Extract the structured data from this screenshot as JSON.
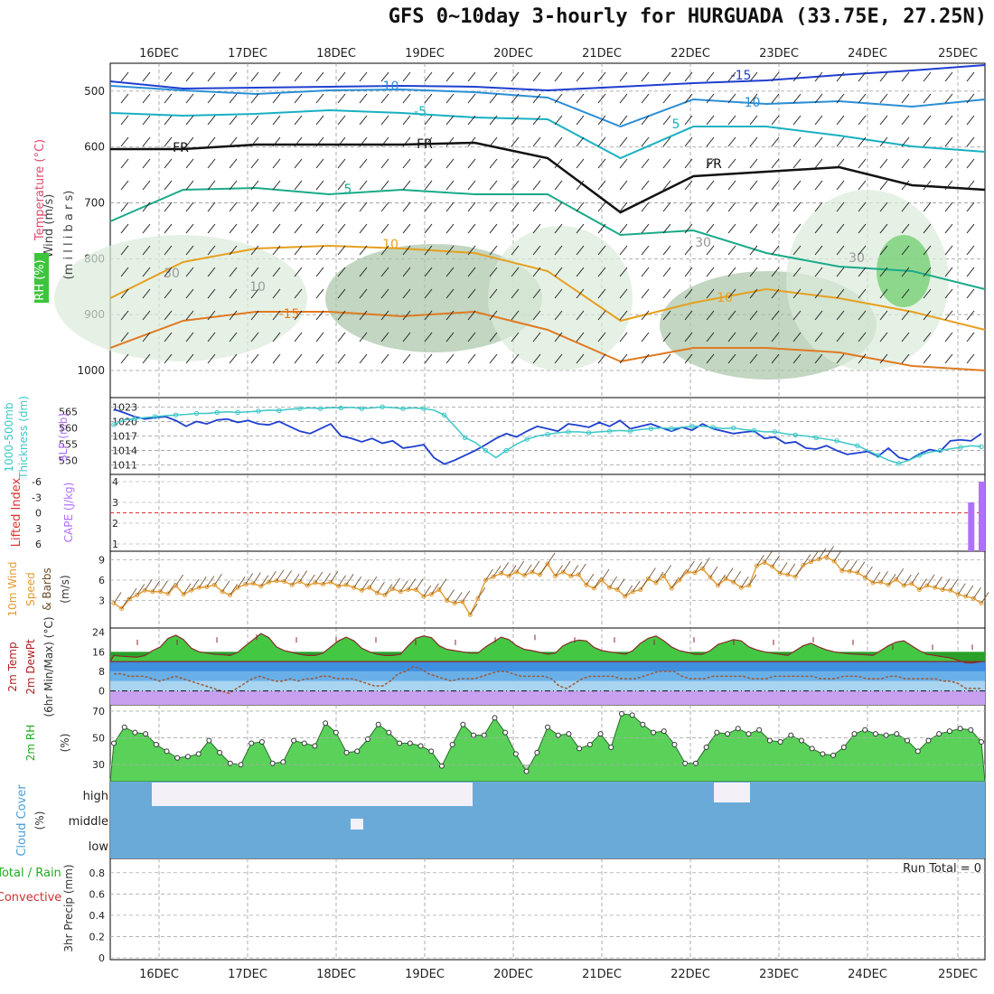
{
  "title": "GFS 0~10day 3-hourly for HURGUADA (33.75E, 27.25N)",
  "run_total_text": "Run Total = 0",
  "colors": {
    "slp": "#1f3fcf",
    "thickness": "#3cc7c7",
    "wind_speed": "#e39a30",
    "barb": "#6b4a2a",
    "cape": "#b070ff",
    "lifted": "#e03030",
    "temp_fill": "#44c844",
    "dew": "#9a5a3a",
    "rh_fill": "#5ad25a",
    "cloud": "#6aaad8",
    "clear": "#f4f0f8"
  },
  "chart_data": {
    "type": "line",
    "days": [
      "16DEC",
      "17DEC",
      "18DEC",
      "19DEC",
      "20DEC",
      "21DEC",
      "22DEC",
      "23DEC",
      "24DEC",
      "25DEC"
    ],
    "panels": [
      {
        "id": "profile",
        "ylabels": [
          "Wind (m/s)",
          "Temperature (°C)",
          "RH (%)",
          "(m i l l i b a r s)"
        ],
        "yticks": [
          500,
          600,
          700,
          800,
          900,
          1000
        ],
        "ylim": [
          450,
          1000
        ],
        "contour_labels": [
          "-15",
          "-10",
          "-10",
          "-5",
          "5",
          "5",
          "FR",
          "FR",
          "FR",
          "10",
          "10",
          "-15",
          "10",
          "30",
          "30",
          "30"
        ]
      },
      {
        "id": "slp_thickness",
        "ylabels": [
          "1000-500mb",
          "Thickness (dm)",
          "SLP (mb)"
        ],
        "yticks_left": [
          550,
          555,
          560,
          565
        ],
        "yticks_right": [
          1011,
          1014,
          1017,
          1020,
          1023
        ],
        "slp": [
          1022.5,
          1021.8,
          1021.0,
          1020.5,
          1020.8,
          1021.0,
          1020.2,
          1019.0,
          1020.0,
          1019.5,
          1020.3,
          1020.5,
          1019.8,
          1020.2,
          1019.5,
          1019.3,
          1020.0,
          1019.0,
          1018.0,
          1017.5,
          1018.5,
          1019.5,
          1017.0,
          1016.5,
          1015.8,
          1016.5,
          1015.5,
          1016.0,
          1014.5,
          1014.8,
          1015.2,
          1012.5,
          1011.2,
          1012.0,
          1013.0,
          1014.0,
          1015.2,
          1016.5,
          1017.5,
          1016.8,
          1018.0,
          1019.0,
          1018.5,
          1018.0,
          1019.5,
          1019.2,
          1018.8,
          1019.8,
          1019.0,
          1020.2,
          1018.5,
          1019.0,
          1019.5,
          1018.7,
          1018.0,
          1018.8,
          1018.2,
          1019.5,
          1018.5,
          1018.0,
          1017.5,
          1017.8,
          1018.0,
          1016.5,
          1016.8,
          1015.5,
          1015.8,
          1014.5,
          1014.3,
          1015.0,
          1014.0,
          1013.2,
          1013.5,
          1013.8,
          1012.8,
          1014.5,
          1012.6,
          1012.0,
          1013.3,
          1014.2,
          1013.8,
          1016.0,
          1016.2,
          1016.0,
          1017.5
        ],
        "thickness": [
          561.0,
          562.5,
          562.8,
          563.2,
          563.5,
          563.8,
          564.0,
          564.2,
          564.5,
          564.5,
          564.8,
          565.0,
          564.8,
          565.0,
          565.2,
          565.5,
          565.4,
          565.8,
          566.0,
          566.2,
          566.0,
          566.3,
          566.2,
          566.4,
          566.0,
          566.2,
          566.5,
          566.3,
          566.0,
          566.2,
          566.0,
          565.5,
          564.0,
          560.5,
          557.0,
          555.5,
          553.0,
          550.8,
          553.0,
          555.0,
          556.5,
          557.5,
          558.0,
          558.5,
          558.8,
          558.8,
          558.5,
          558.8,
          559.0,
          559.2,
          559.0,
          559.5,
          559.8,
          560.0,
          559.8,
          560.2,
          560.5,
          560.5,
          560.2,
          559.8,
          560.0,
          559.5,
          559.2,
          558.8,
          558.8,
          558.2,
          557.8,
          557.5,
          557.0,
          556.5,
          556.0,
          555.2,
          554.5,
          553.0,
          551.5,
          550.0,
          549.0,
          550.0,
          551.5,
          552.5,
          553.0,
          553.5,
          554.0,
          554.5,
          554.2
        ]
      },
      {
        "id": "cape_li",
        "ylabels": [
          "Lifted Index",
          "CAPE (J/kg)"
        ],
        "yticks_left": [
          "-6",
          "-3",
          "0",
          "3",
          "6"
        ],
        "yticks_right": [
          "4",
          "3",
          "2",
          "1"
        ],
        "cape_bars": [
          {
            "x": 81,
            "value": 3.0
          },
          {
            "x": 82,
            "value": 4.0
          }
        ]
      },
      {
        "id": "wind10m",
        "ylabels": [
          "10m Wind",
          "Speed",
          "& Barbs",
          "(m/s)"
        ],
        "yticks": [
          3,
          6,
          9
        ],
        "speed": [
          2.6,
          1.8,
          3.2,
          3.8,
          4.5,
          4.3,
          4.3,
          4.0,
          5.2,
          3.9,
          4.5,
          4.9,
          5.0,
          5.3,
          4.3,
          3.8,
          4.9,
          5.4,
          5.5,
          5.1,
          5.7,
          5.9,
          5.8,
          5.3,
          5.8,
          5.2,
          5.6,
          5.4,
          5.7,
          5.1,
          5.3,
          4.9,
          4.5,
          4.9,
          4.1,
          3.8,
          4.7,
          4.3,
          4.6,
          4.6,
          3.6,
          3.9,
          4.6,
          3.0,
          2.6,
          2.8,
          0.9,
          3.3,
          6.0,
          6.5,
          7.0,
          6.6,
          7.2,
          6.7,
          7.2,
          6.8,
          8.4,
          6.6,
          7.2,
          6.6,
          6.8,
          5.3,
          4.8,
          6.0,
          4.9,
          4.6,
          3.6,
          4.3,
          4.6,
          6.2,
          5.6,
          6.6,
          4.8,
          6.0,
          7.2,
          7.1,
          7.7,
          6.4,
          5.2,
          6.2,
          5.7,
          4.9,
          5.2,
          8.1,
          8.6,
          8.0,
          7.0,
          6.8,
          6.5,
          8.2,
          8.7,
          9.1,
          9.4,
          8.8,
          7.4,
          7.3,
          7.1,
          6.4,
          5.6,
          5.7,
          5.3,
          6.1,
          5.2,
          5.5,
          4.6,
          5.2,
          4.9,
          4.6,
          4.5,
          3.9,
          3.6,
          3.3,
          2.6
        ]
      },
      {
        "id": "temp2m",
        "ylabels": [
          "2m Temp",
          "2m DewPt",
          "(6hr Min/Max) (°C)"
        ],
        "yticks": [
          0,
          8,
          16,
          24
        ],
        "temp": [
          14.5,
          14.2,
          14.0,
          13.8,
          14.5,
          16.5,
          18.0,
          21.5,
          22.8,
          21.0,
          17.5,
          16.0,
          15.5,
          15.0,
          14.8,
          14.5,
          15.8,
          18.5,
          21.0,
          23.5,
          21.8,
          18.0,
          16.5,
          15.8,
          15.0,
          14.5,
          14.5,
          15.5,
          18.0,
          20.5,
          22.0,
          20.5,
          17.5,
          16.0,
          15.0,
          14.5,
          14.5,
          15.0,
          18.5,
          21.5,
          22.5,
          21.8,
          18.5,
          17.0,
          16.5,
          16.0,
          15.5,
          15.5,
          18.0,
          20.0,
          22.0,
          21.0,
          18.5,
          17.0,
          16.5,
          15.8,
          15.0,
          15.5,
          18.5,
          20.0,
          20.8,
          20.5,
          17.8,
          16.5,
          16.0,
          15.5,
          15.0,
          16.5,
          19.5,
          21.5,
          22.5,
          20.5,
          18.0,
          16.5,
          15.8,
          15.0,
          15.0,
          16.5,
          19.0,
          20.0,
          21.0,
          20.5,
          18.0,
          16.8,
          16.0,
          15.5,
          15.0,
          14.5,
          16.5,
          18.5,
          19.5,
          18.0,
          16.8,
          16.0,
          15.5,
          15.2,
          15.0,
          14.8,
          14.5,
          16.5,
          18.5,
          20.0,
          20.5,
          18.5,
          16.5,
          15.0,
          14.5,
          14.0,
          13.5,
          12.5,
          11.5,
          11.5,
          12.0
        ],
        "dew": [
          7,
          7,
          6,
          6,
          6,
          5,
          4,
          5,
          6,
          5,
          4,
          3,
          2,
          1,
          0,
          -1,
          1,
          3,
          5,
          6,
          5,
          4,
          4,
          5,
          4,
          5,
          5,
          6,
          6,
          5,
          5,
          5,
          4,
          3,
          2,
          2,
          4,
          7,
          8,
          10,
          9,
          7,
          6,
          5,
          4,
          5,
          5,
          5,
          6,
          7,
          8,
          8,
          7,
          6,
          6,
          6,
          6,
          5,
          2,
          1,
          3,
          5,
          6,
          6,
          6,
          6,
          5,
          5,
          5,
          6,
          7,
          8,
          8,
          8,
          6,
          5,
          5,
          5,
          6,
          6,
          6,
          6,
          6,
          5,
          5,
          5,
          6,
          6,
          6,
          6,
          6,
          6,
          5,
          5,
          5,
          6,
          6,
          6,
          5,
          5,
          5,
          6,
          6,
          5,
          5,
          5,
          5,
          5,
          4,
          4,
          3,
          1,
          1,
          1
        ],
        "min_marks": [
          13,
          12,
          13,
          17,
          15,
          12,
          13,
          14,
          14,
          12,
          14,
          14,
          14,
          14,
          15,
          14,
          14,
          14,
          15,
          14,
          14,
          14
        ],
        "max_marks": [
          21,
          21,
          22,
          23,
          22,
          22,
          22,
          21,
          21,
          22,
          23,
          22,
          22,
          21,
          22,
          21,
          21,
          22,
          21,
          19,
          19,
          19
        ]
      },
      {
        "id": "rh2m",
        "ylabels": [
          "2m RH",
          "(%)"
        ],
        "yticks": [
          30,
          50,
          70
        ],
        "rh": [
          46,
          58,
          54,
          53,
          45,
          40,
          35,
          36,
          38,
          48,
          39,
          31,
          30,
          46,
          47,
          31,
          32,
          48,
          46,
          44,
          61,
          54,
          39,
          40,
          49,
          60,
          54,
          46,
          46,
          44,
          40,
          29,
          45,
          60,
          52,
          52,
          65,
          54,
          38,
          25,
          39,
          58,
          52,
          53,
          42,
          45,
          53,
          43,
          68,
          67,
          60,
          54,
          55,
          45,
          31,
          31,
          43,
          54,
          53,
          57,
          53,
          56,
          48,
          47,
          52,
          48,
          42,
          38,
          37,
          43,
          53,
          56,
          53,
          52,
          53,
          48,
          40,
          48,
          53,
          55,
          57,
          56,
          47
        ]
      },
      {
        "id": "cloud",
        "ylabels": [
          "Cloud Cover",
          "(%)"
        ],
        "yticks": [
          "high",
          "middle",
          "low"
        ]
      },
      {
        "id": "precip",
        "ylabels": [
          "Total / Rain",
          "Convective",
          "3hr Precip (mm)"
        ],
        "yticks": [
          "0",
          "0.2",
          "0.4",
          "0.6",
          "0.8"
        ]
      }
    ]
  }
}
